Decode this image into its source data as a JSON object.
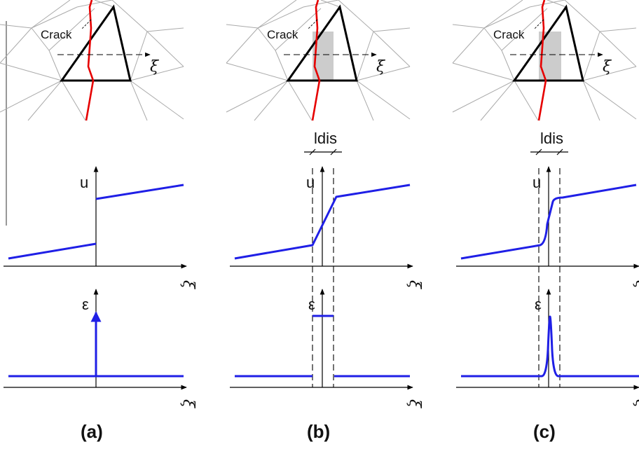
{
  "panels": [
    {
      "caption": "(a)",
      "crack_label": "Crack",
      "xi_label": "ξ",
      "u_label": "u",
      "strain_label": "ε",
      "width_label": "",
      "strain_profile": "dirac"
    },
    {
      "caption": "(b)",
      "crack_label": "Crack",
      "xi_label": "ξ",
      "u_label": "u",
      "strain_label": "ε",
      "width_label": "ldis",
      "strain_profile": "constant band"
    },
    {
      "caption": "(c)",
      "crack_label": "Crack",
      "xi_label": "ξ",
      "u_label": "u",
      "strain_label": "ε",
      "width_label": "ldis",
      "strain_profile": "peak"
    }
  ],
  "colors": {
    "crack": "#e60000",
    "curve": "#1f1fe6",
    "mesh": "#aaaaaa",
    "band": "#cccccc"
  }
}
